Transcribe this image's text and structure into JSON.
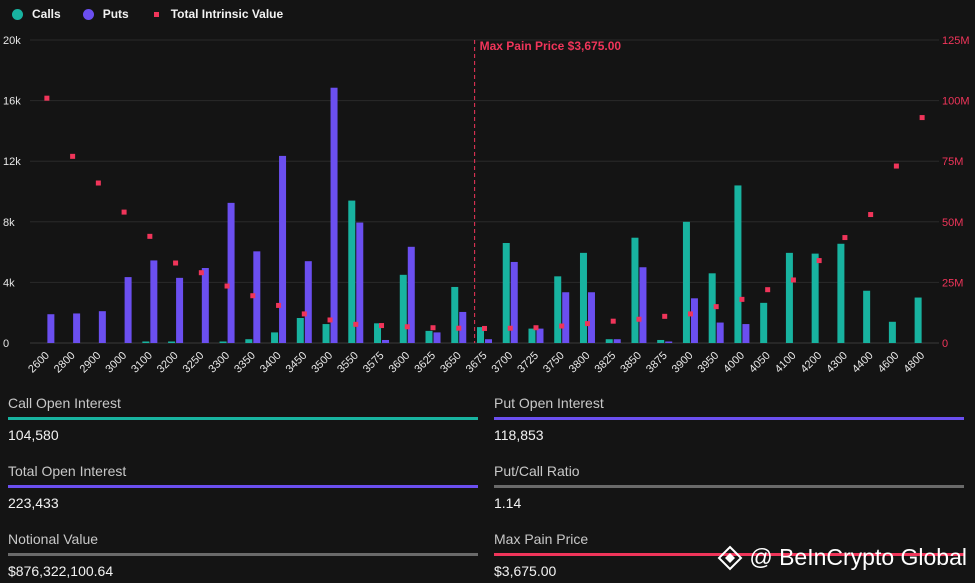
{
  "colors": {
    "calls": "#18b3a0",
    "puts": "#6b4ff0",
    "intrinsic": "#f0355a",
    "grid": "#2a2a2a",
    "axis_text": "#e6e6e6",
    "right_axis_text": "#f0355a",
    "max_pain_line": "#f0355a",
    "neutral_line": "#6a6a6a"
  },
  "legend": {
    "calls_label": "Calls",
    "puts_label": "Puts",
    "intrinsic_label": "Total Intrinsic Value"
  },
  "chart_data": {
    "type": "bar",
    "title": "",
    "categories": [
      "2600",
      "2800",
      "2900",
      "3000",
      "3100",
      "3200",
      "3250",
      "3300",
      "3350",
      "3400",
      "3450",
      "3500",
      "3550",
      "3575",
      "3600",
      "3625",
      "3650",
      "3675",
      "3700",
      "3725",
      "3750",
      "3800",
      "3825",
      "3850",
      "3875",
      "3900",
      "3950",
      "4000",
      "4050",
      "4100",
      "4200",
      "4300",
      "4400",
      "4600",
      "4800"
    ],
    "series": [
      {
        "name": "Calls",
        "axis": "left",
        "kind": "bar",
        "values": [
          0,
          0,
          0,
          0,
          100,
          100,
          0,
          100,
          250,
          700,
          1650,
          1250,
          9400,
          1300,
          4500,
          800,
          3700,
          1050,
          6600,
          950,
          4400,
          5950,
          250,
          6950,
          200,
          8000,
          4600,
          10400,
          2650,
          5950,
          5900,
          6550,
          3450,
          1400,
          3000
        ]
      },
      {
        "name": "Puts",
        "axis": "left",
        "kind": "bar",
        "values": [
          1900,
          1950,
          2100,
          4350,
          5450,
          4300,
          4950,
          9250,
          6050,
          12350,
          5400,
          16850,
          7950,
          200,
          6350,
          700,
          2050,
          250,
          5350,
          950,
          3350,
          3350,
          250,
          5000,
          100,
          2950,
          1350,
          1250,
          0,
          0,
          0,
          0,
          0,
          0,
          0
        ]
      },
      {
        "name": "Total Intrinsic Value",
        "axis": "right",
        "kind": "point",
        "values": [
          101000000,
          77000000,
          66000000,
          54000000,
          44000000,
          33000000,
          29000000,
          23500000,
          19500000,
          15500000,
          12000000,
          9500000,
          7700000,
          7200000,
          6700000,
          6300000,
          6100000,
          6000000,
          6100000,
          6300000,
          7000000,
          8000000,
          9000000,
          9800000,
          11000000,
          12000000,
          15000000,
          18000000,
          22000000,
          26000000,
          34000000,
          43500000,
          53000000,
          73000000,
          93000000
        ]
      }
    ],
    "y_left": {
      "min": 0,
      "max": 20000,
      "ticks": [
        0,
        4000,
        8000,
        12000,
        16000,
        20000
      ],
      "tick_labels": [
        "0",
        "4k",
        "8k",
        "12k",
        "16k",
        "20k"
      ]
    },
    "y_right": {
      "min": 0,
      "max": 125000000,
      "ticks": [
        0,
        25000000,
        50000000,
        75000000,
        100000000,
        125000000
      ],
      "tick_labels": [
        "0",
        "25M",
        "50M",
        "75M",
        "100M",
        "125M"
      ]
    },
    "annotation": {
      "label": "Max Pain Price $3,675.00",
      "category": "3675"
    },
    "grid": true,
    "legend_position": "top-left"
  },
  "stats": {
    "call_oi": {
      "label": "Call Open Interest",
      "value": "104,580"
    },
    "put_oi": {
      "label": "Put Open Interest",
      "value": "118,853"
    },
    "total_oi": {
      "label": "Total Open Interest",
      "value": "223,433"
    },
    "pc_ratio": {
      "label": "Put/Call Ratio",
      "value": "1.14"
    },
    "notional": {
      "label": "Notional Value",
      "value": "$876,322,100.64"
    },
    "max_pain": {
      "label": "Max Pain Price",
      "value": "$3,675.00"
    }
  },
  "watermark": {
    "text": "@ BeInCrypto Global",
    "icon": "beincrypto-logo-icon"
  }
}
